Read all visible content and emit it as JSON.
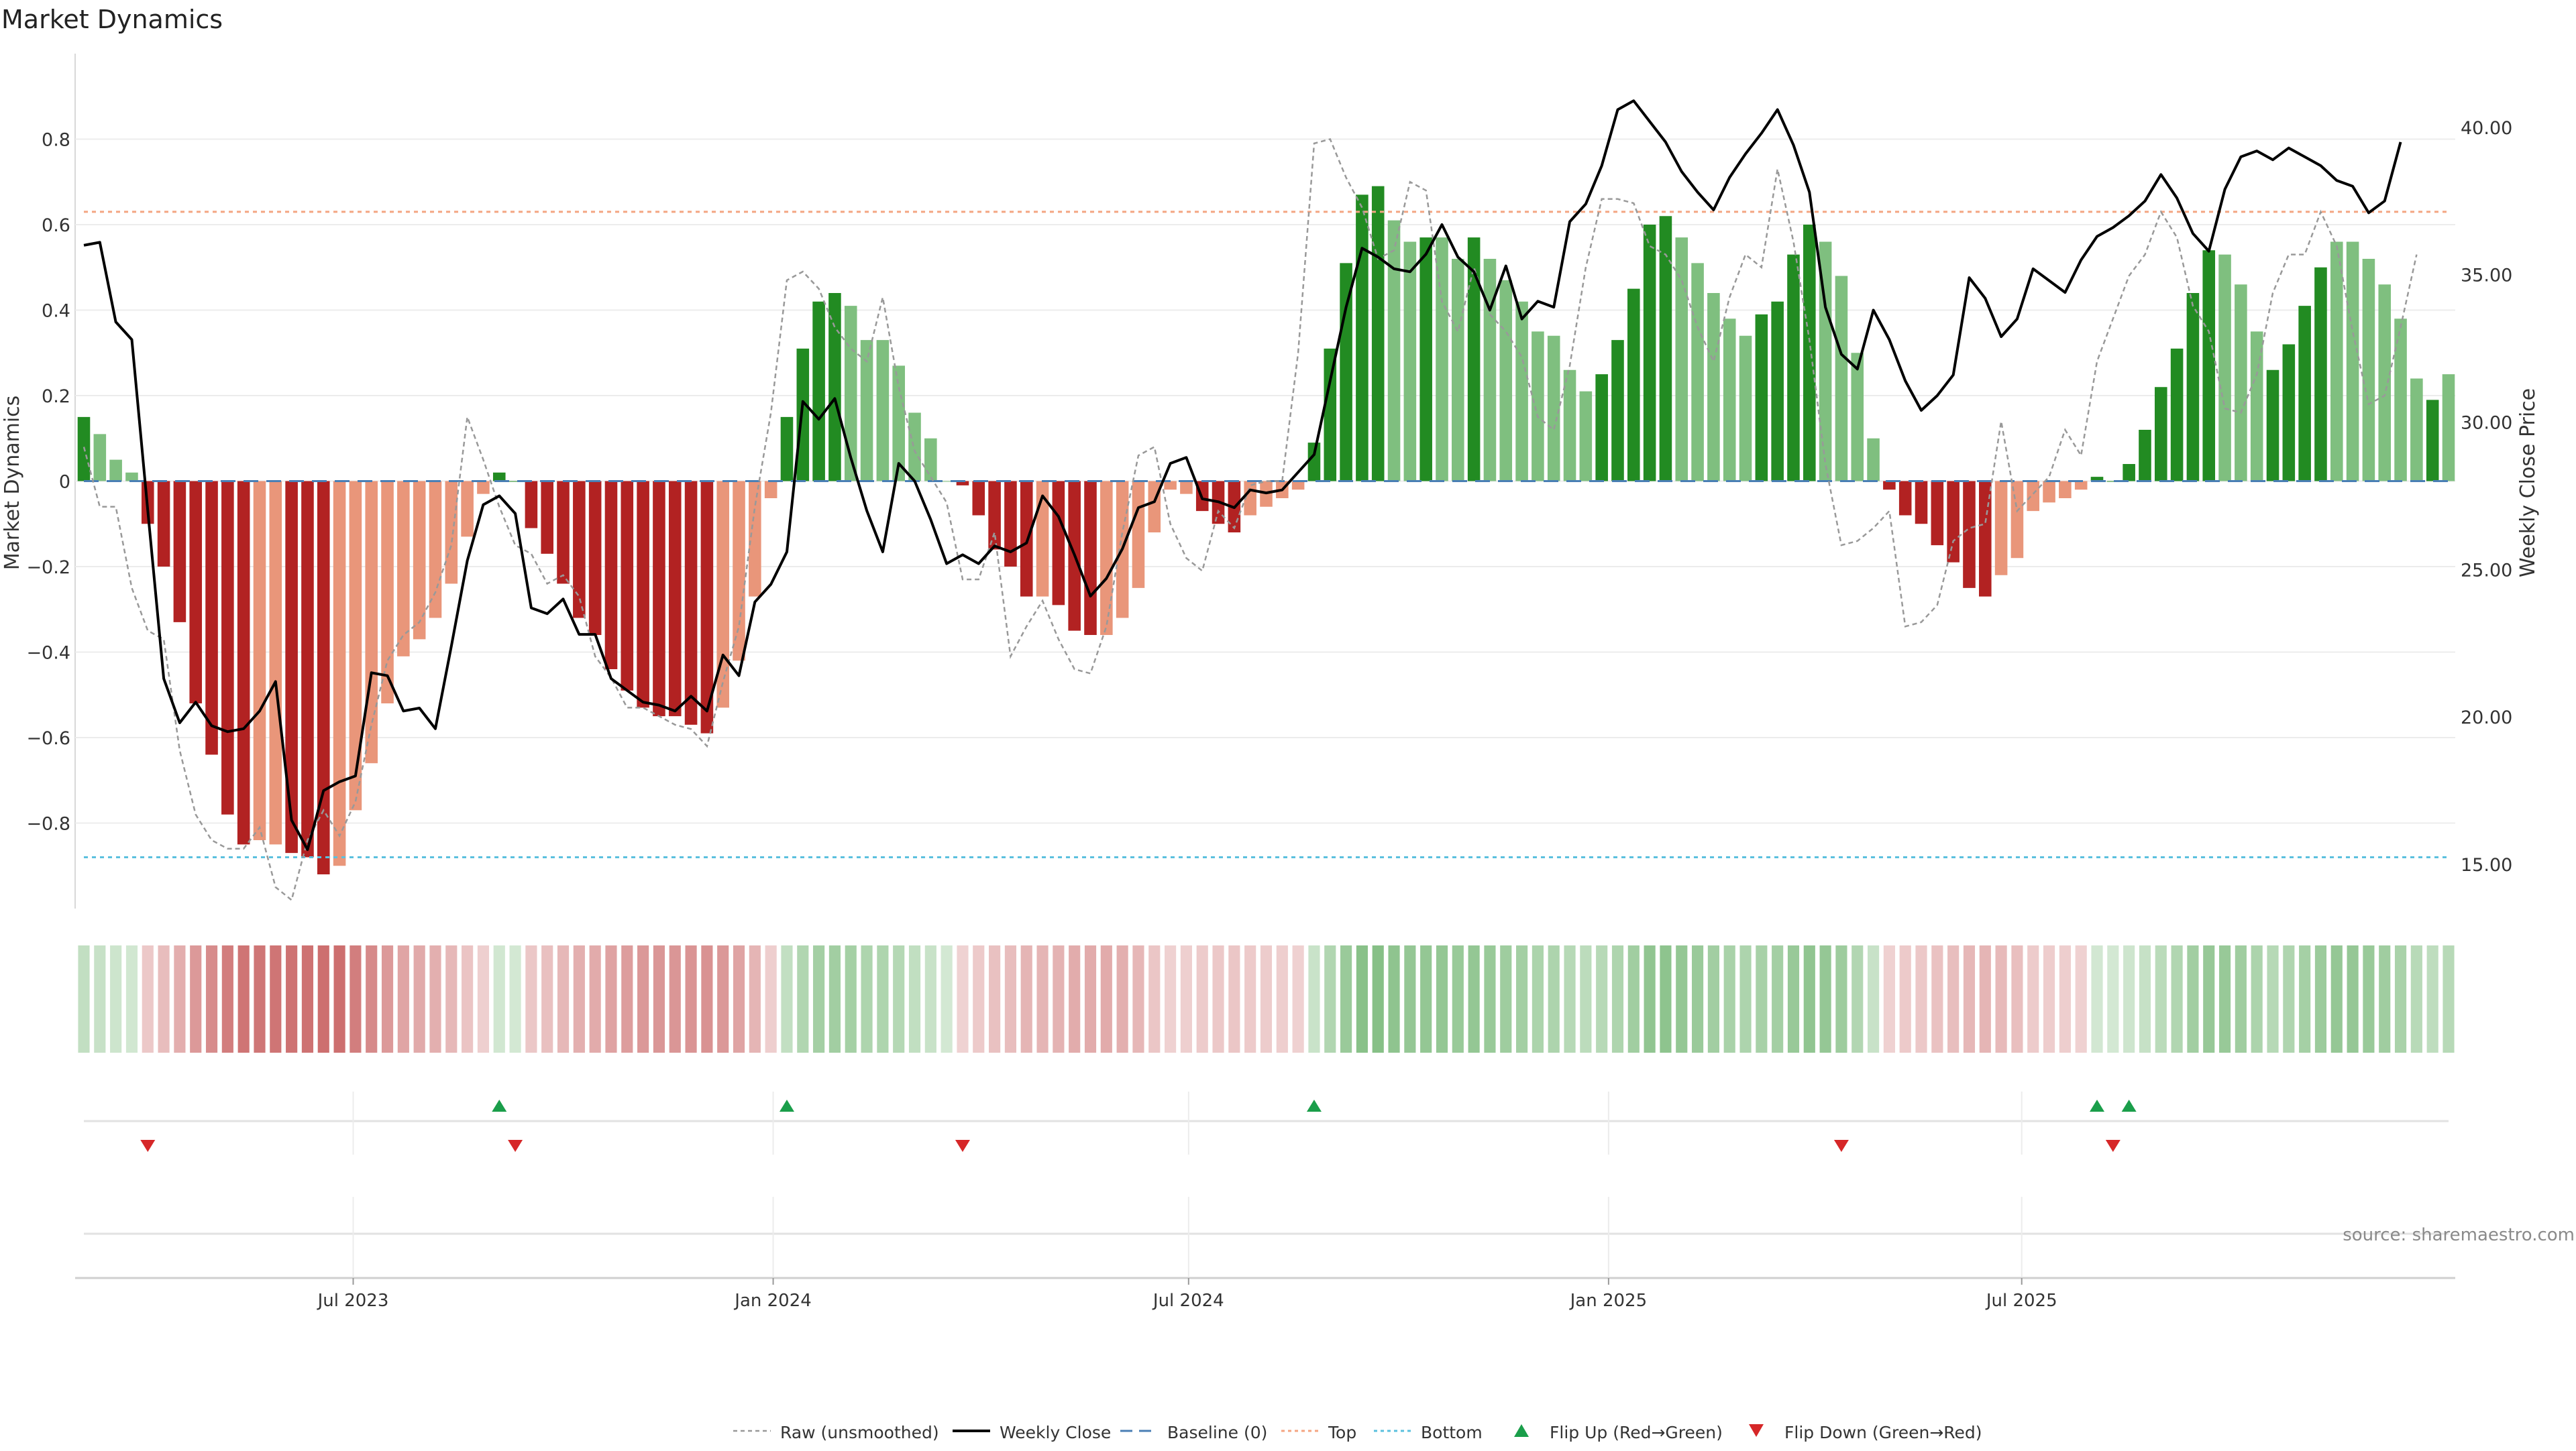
{
  "title": "Market Dynamics",
  "source": "source: sharemaestro.com",
  "colors": {
    "strong_green": "#228B22",
    "light_green": "#7FBF7F",
    "strong_red": "#B22222",
    "light_red": "#E9967A",
    "weekly_close": "#000000",
    "raw": "#999999",
    "baseline": "#4a7fb5",
    "top": "#F4A582",
    "bottom": "#5BC0DE",
    "flip_up": "#1a9e4a",
    "flip_down": "#d62728",
    "grid": "#ececec"
  },
  "chart_data": {
    "type": "bar",
    "title": "Market Dynamics",
    "ylabel": "Market Dynamics",
    "y2label": "Weekly Close Price",
    "ylim": [
      -1.0,
      1.0
    ],
    "y2lim": [
      13.5,
      42.5
    ],
    "yticks": [
      "0.8",
      "0.6",
      "0.4",
      "0.2",
      "0",
      "−0.2",
      "−0.4",
      "−0.6",
      "−0.8"
    ],
    "y2ticks": [
      "40.00",
      "35.00",
      "30.00",
      "25.00",
      "20.00",
      "15.00"
    ],
    "xticks": [
      "Jul 2023",
      "Jan 2024",
      "Jul 2024",
      "Jan 2025",
      "Jul 2025"
    ],
    "top_level": 0.63,
    "bottom_level": -0.88,
    "baseline": 0,
    "legend": [
      "Raw (unsmoothed)",
      "Weekly Close",
      "Baseline (0)",
      "Top",
      "Bottom",
      "Flip Up (Red→Green)",
      "Flip Down (Green→Red)"
    ],
    "legend_position": "bottom-center",
    "grid": true,
    "dynamics": [
      0.15,
      0.11,
      0.05,
      0.02,
      -0.1,
      -0.2,
      -0.33,
      -0.52,
      -0.64,
      -0.78,
      -0.85,
      -0.84,
      -0.85,
      -0.87,
      -0.88,
      -0.92,
      -0.9,
      -0.77,
      -0.66,
      -0.52,
      -0.41,
      -0.37,
      -0.32,
      -0.24,
      -0.13,
      -0.03,
      0.02,
      0.0,
      -0.11,
      -0.17,
      -0.24,
      -0.32,
      -0.36,
      -0.44,
      -0.49,
      -0.53,
      -0.55,
      -0.55,
      -0.57,
      -0.59,
      -0.53,
      -0.42,
      -0.27,
      -0.04,
      0.15,
      0.31,
      0.42,
      0.44,
      0.41,
      0.33,
      0.33,
      0.27,
      0.16,
      0.1,
      0.0,
      -0.01,
      -0.08,
      -0.16,
      -0.2,
      -0.27,
      -0.27,
      -0.29,
      -0.35,
      -0.36,
      -0.36,
      -0.32,
      -0.25,
      -0.12,
      -0.02,
      -0.03,
      -0.07,
      -0.1,
      -0.12,
      -0.08,
      -0.06,
      -0.04,
      -0.02,
      0.09,
      0.31,
      0.51,
      0.67,
      0.69,
      0.61,
      0.56,
      0.57,
      0.57,
      0.52,
      0.57,
      0.52,
      0.47,
      0.42,
      0.35,
      0.34,
      0.26,
      0.21,
      0.25,
      0.33,
      0.45,
      0.6,
      0.62,
      0.57,
      0.51,
      0.44,
      0.38,
      0.34,
      0.39,
      0.42,
      0.53,
      0.6,
      0.56,
      0.48,
      0.3,
      0.1,
      -0.02,
      -0.08,
      -0.1,
      -0.15,
      -0.19,
      -0.25,
      -0.27,
      -0.22,
      -0.18,
      -0.07,
      -0.05,
      -0.04,
      -0.02,
      0.01,
      0.0,
      0.04,
      0.12,
      0.22,
      0.31,
      0.44,
      0.54,
      0.53,
      0.46,
      0.35,
      0.26,
      0.32,
      0.41,
      0.5,
      0.56,
      0.56,
      0.52,
      0.46,
      0.38,
      0.24,
      0.19,
      0.25
    ],
    "dynamics_strength": [
      1,
      0,
      0,
      0,
      1,
      1,
      1,
      1,
      1,
      1,
      1,
      0,
      0,
      1,
      1,
      1,
      0,
      0,
      0,
      0,
      0,
      0,
      0,
      0,
      0,
      0,
      1,
      1,
      1,
      1,
      1,
      1,
      1,
      1,
      1,
      1,
      1,
      1,
      1,
      1,
      0,
      0,
      0,
      0,
      1,
      1,
      1,
      1,
      0,
      0,
      0,
      0,
      0,
      0,
      0,
      1,
      1,
      1,
      1,
      1,
      0,
      1,
      1,
      1,
      0,
      0,
      0,
      0,
      0,
      0,
      1,
      1,
      1,
      0,
      0,
      0,
      0,
      1,
      1,
      1,
      1,
      1,
      0,
      0,
      1,
      0,
      0,
      1,
      0,
      0,
      0,
      0,
      0,
      0,
      0,
      1,
      1,
      1,
      1,
      1,
      0,
      0,
      0,
      0,
      0,
      1,
      1,
      1,
      1,
      0,
      0,
      0,
      0,
      1,
      1,
      1,
      1,
      1,
      1,
      1,
      0,
      0,
      0,
      0,
      0,
      0,
      1,
      1,
      1,
      1,
      1,
      1,
      1,
      1,
      0,
      0,
      0,
      1,
      1,
      1,
      1,
      0,
      0,
      0,
      0,
      0,
      0,
      1
    ],
    "weekly_close": [
      36,
      36.1,
      33.4,
      32.8,
      27,
      21.3,
      19.8,
      20.5,
      19.7,
      19.5,
      19.6,
      20.2,
      21.2,
      16.5,
      15.5,
      17.5,
      17.8,
      18,
      21.5,
      21.4,
      20.2,
      20.3,
      19.6,
      22.4,
      25.3,
      27.2,
      27.5,
      26.9,
      23.7,
      23.5,
      24,
      22.8,
      22.8,
      21.3,
      20.9,
      20.5,
      20.4,
      20.2,
      20.7,
      20.2,
      22.1,
      21.4,
      23.9,
      24.5,
      25.6,
      30.7,
      30.1,
      30.8,
      28.8,
      27,
      25.6,
      28.6,
      28,
      26.7,
      25.2,
      25.5,
      25.2,
      25.8,
      25.6,
      25.9,
      27.5,
      26.8,
      25.5,
      24.1,
      24.7,
      25.7,
      27.1,
      27.3,
      28.6,
      28.8,
      27.4,
      27.3,
      27.1,
      27.7,
      27.6,
      27.7,
      28.3,
      28.9,
      31.4,
      33.9,
      35.9,
      35.6,
      35.2,
      35.1,
      35.7,
      36.7,
      35.6,
      35.1,
      33.8,
      35.3,
      33.5,
      34.1,
      33.9,
      36.8,
      37.4,
      38.7,
      40.6,
      40.9,
      40.2,
      39.5,
      38.5,
      37.8,
      37.2,
      38.3,
      39.1,
      39.8,
      40.6,
      39.4,
      37.8,
      33.9,
      32.3,
      31.8,
      33.8,
      32.8,
      31.4,
      30.4,
      30.9,
      31.6,
      34.9,
      34.2,
      32.9,
      33.5,
      35.2,
      34.8,
      34.4,
      35.5,
      36.3,
      36.6,
      37,
      37.5,
      38.4,
      37.6,
      36.4,
      35.8,
      37.9,
      39,
      39.2,
      38.9,
      39.3,
      39,
      38.7,
      38.2,
      38,
      37.1,
      37.5,
      39.5
    ],
    "raw": [
      0.08,
      -0.06,
      -0.06,
      -0.25,
      -0.35,
      -0.37,
      -0.63,
      -0.78,
      -0.84,
      -0.86,
      -0.86,
      -0.81,
      -0.95,
      -0.98,
      -0.84,
      -0.77,
      -0.83,
      -0.75,
      -0.57,
      -0.42,
      -0.36,
      -0.33,
      -0.26,
      -0.15,
      0.15,
      0.05,
      -0.06,
      -0.15,
      -0.17,
      -0.24,
      -0.22,
      -0.27,
      -0.41,
      -0.46,
      -0.53,
      -0.53,
      -0.55,
      -0.57,
      -0.58,
      -0.62,
      -0.47,
      -0.34,
      -0.06,
      0.16,
      0.47,
      0.49,
      0.45,
      0.36,
      0.31,
      0.28,
      0.43,
      0.22,
      0.07,
      0.01,
      -0.05,
      -0.23,
      -0.23,
      -0.12,
      -0.41,
      -0.34,
      -0.28,
      -0.37,
      -0.44,
      -0.45,
      -0.34,
      -0.12,
      0.06,
      0.08,
      -0.1,
      -0.18,
      -0.21,
      -0.07,
      -0.11,
      -0.01,
      0.0,
      0.0,
      0.3,
      0.79,
      0.8,
      0.71,
      0.64,
      0.52,
      0.54,
      0.7,
      0.68,
      0.42,
      0.35,
      0.5,
      0.39,
      0.35,
      0.29,
      0.15,
      0.12,
      0.27,
      0.5,
      0.66,
      0.66,
      0.65,
      0.55,
      0.53,
      0.47,
      0.36,
      0.28,
      0.43,
      0.53,
      0.5,
      0.73,
      0.56,
      0.33,
      0.04,
      -0.15,
      -0.14,
      -0.11,
      -0.07,
      -0.34,
      -0.33,
      -0.29,
      -0.14,
      -0.11,
      -0.1,
      0.14,
      -0.07,
      -0.03,
      0.01,
      0.12,
      0.06,
      0.28,
      0.38,
      0.48,
      0.53,
      0.63,
      0.57,
      0.41,
      0.35,
      0.17,
      0.16,
      0.25,
      0.44,
      0.53,
      0.53,
      0.63,
      0.55,
      0.35,
      0.18,
      0.2,
      0.36,
      0.53
    ],
    "flip_up_weeks": [
      26,
      44,
      77,
      126,
      128
    ],
    "flip_down_weeks": [
      4,
      27,
      55,
      110,
      127
    ],
    "x_start": "2023-03-05",
    "x_step_days": 7,
    "xtick_dates": [
      "2023-07-01",
      "2024-01-01",
      "2024-07-01",
      "2025-01-01",
      "2025-07-01"
    ]
  }
}
